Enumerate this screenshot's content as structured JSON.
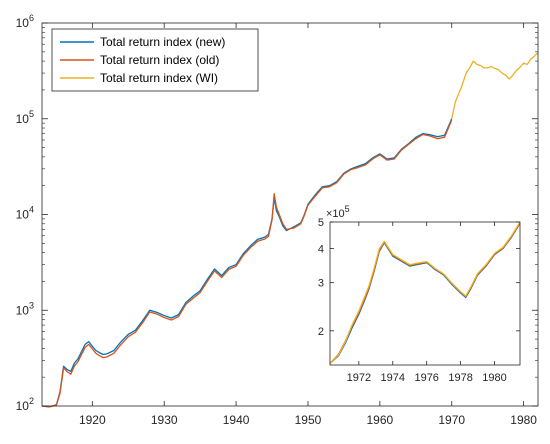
{
  "chart_data": [
    {
      "type": "line",
      "title": "",
      "xlabel": "",
      "ylabel": "",
      "y_scale": "log",
      "xlim": [
        1913,
        1982
      ],
      "ylim": [
        100,
        1000000
      ],
      "x_ticks": [
        1920,
        1930,
        1940,
        1950,
        1960,
        1970,
        1980
      ],
      "y_ticks": [
        {
          "value": 100,
          "base": "10",
          "exp": "2"
        },
        {
          "value": 1000,
          "base": "10",
          "exp": "3"
        },
        {
          "value": 10000,
          "base": "10",
          "exp": "4"
        },
        {
          "value": 100000,
          "base": "10",
          "exp": "5"
        },
        {
          "value": 1000000,
          "base": "10",
          "exp": "6"
        }
      ],
      "grid": false,
      "legend_position": "top-left",
      "series": [
        {
          "name": "Total return index (new)",
          "color": "#0072BD",
          "x": [
            1913.0,
            1914.0,
            1915.0,
            1915.5,
            1916.0,
            1916.5,
            1917.0,
            1917.5,
            1918.0,
            1919.0,
            1919.5,
            1920.0,
            1920.5,
            1921.0,
            1921.5,
            1922.0,
            1923.0,
            1924.0,
            1925.0,
            1926.0,
            1927.0,
            1928.0,
            1929.0,
            1930.0,
            1931.0,
            1932.0,
            1933.0,
            1934.0,
            1935.0,
            1936.0,
            1937.0,
            1938.0,
            1939.0,
            1940.0,
            1941.0,
            1942.0,
            1943.0,
            1944.0,
            1944.5,
            1945.0,
            1945.3,
            1945.6,
            1946.0,
            1946.5,
            1947.0,
            1948.0,
            1949.0,
            1949.5,
            1950.0,
            1951.0,
            1952.0,
            1953.0,
            1954.0,
            1955.0,
            1956.0,
            1957.0,
            1958.0,
            1959.0,
            1960.0,
            1961.0,
            1962.0,
            1963.0,
            1964.0,
            1965.0,
            1966.0,
            1967.0,
            1968.0,
            1969.0,
            1970.0
          ],
          "y": [
            100,
            98,
            103,
            140,
            260,
            240,
            230,
            280,
            310,
            440,
            470,
            420,
            380,
            360,
            345,
            350,
            380,
            470,
            560,
            620,
            780,
            1000,
            950,
            880,
            830,
            900,
            1200,
            1400,
            1600,
            2100,
            2700,
            2300,
            2800,
            3000,
            3900,
            4700,
            5500,
            5800,
            6200,
            9000,
            15000,
            11000,
            9500,
            7600,
            6800,
            7400,
            8200,
            10000,
            12800,
            16000,
            19500,
            20000,
            22000,
            27000,
            30000,
            32000,
            34000,
            39000,
            43000,
            38000,
            39000,
            48000,
            55000,
            64000,
            70000,
            68000,
            65000,
            67000,
            100000
          ]
        },
        {
          "name": "Total return index (old)",
          "color": "#D95319",
          "x": [
            1913.0,
            1914.0,
            1915.0,
            1915.5,
            1916.0,
            1916.5,
            1917.0,
            1917.5,
            1918.0,
            1919.0,
            1919.5,
            1920.0,
            1920.5,
            1921.0,
            1921.5,
            1922.0,
            1923.0,
            1924.0,
            1925.0,
            1926.0,
            1927.0,
            1928.0,
            1929.0,
            1930.0,
            1931.0,
            1932.0,
            1933.0,
            1934.0,
            1935.0,
            1936.0,
            1937.0,
            1938.0,
            1939.0,
            1940.0,
            1941.0,
            1942.0,
            1943.0,
            1944.0,
            1944.5,
            1945.0,
            1945.3,
            1945.6,
            1946.0,
            1946.5,
            1947.0,
            1948.0,
            1949.0,
            1949.5,
            1950.0,
            1951.0,
            1952.0,
            1953.0,
            1954.0,
            1955.0,
            1956.0,
            1957.0,
            1958.0,
            1959.0,
            1960.0,
            1961.0,
            1962.0,
            1963.0,
            1964.0,
            1965.0,
            1966.0,
            1967.0,
            1968.0,
            1969.0,
            1970.0
          ],
          "y": [
            100,
            98,
            102,
            135,
            250,
            228,
            215,
            260,
            290,
            410,
            440,
            395,
            355,
            335,
            320,
            325,
            355,
            440,
            530,
            590,
            740,
            960,
            910,
            840,
            790,
            860,
            1150,
            1330,
            1530,
            2000,
            2580,
            2200,
            2680,
            2880,
            3750,
            4500,
            5250,
            5550,
            5900,
            8800,
            16500,
            12000,
            10000,
            8000,
            7000,
            7200,
            8000,
            9800,
            12500,
            15500,
            19000,
            19500,
            21500,
            26500,
            29500,
            31000,
            33000,
            38000,
            42000,
            37000,
            38000,
            47000,
            54000,
            62000,
            68500,
            66000,
            62000,
            64000,
            97000
          ]
        },
        {
          "name": "Total return index (WI)",
          "color": "#EDB120",
          "x": [
            1970.0,
            1970.5,
            1971.0,
            1971.5,
            1972.0,
            1972.5,
            1973.0,
            1973.5,
            1974.0,
            1974.5,
            1975.0,
            1975.5,
            1976.0,
            1976.5,
            1977.0,
            1977.5,
            1978.0,
            1978.5,
            1979.0,
            1979.5,
            1980.0,
            1980.5,
            1981.0,
            1981.5,
            1982.0
          ],
          "y": [
            100000,
            150000,
            185000,
            230000,
            300000,
            340000,
            400000,
            370000,
            360000,
            340000,
            340000,
            350000,
            335000,
            325000,
            300000,
            285000,
            260000,
            285000,
            320000,
            345000,
            380000,
            370000,
            420000,
            450000,
            490000
          ]
        }
      ]
    },
    {
      "type": "line",
      "title": "",
      "xlabel": "",
      "ylabel": "",
      "y_scale": "log",
      "xlim": [
        1970.3,
        1981.5
      ],
      "ylim": [
        150000,
        500000
      ],
      "x_ticks": [
        1972,
        1974,
        1976,
        1978,
        1980
      ],
      "y_ticks": [
        {
          "value": 200000,
          "label": "2"
        },
        {
          "value": 300000,
          "label": "3"
        },
        {
          "value": 400000,
          "label": "4"
        },
        {
          "value": 500000,
          "label": "5"
        }
      ],
      "y_multiplier": {
        "base": "×10",
        "exp": "5"
      },
      "grid": false,
      "series": [
        {
          "name": "Total return index (new)",
          "color": "#0072BD",
          "x": [
            1970.3,
            1970.8,
            1971.2,
            1971.6,
            1972.0,
            1972.3,
            1972.6,
            1972.9,
            1973.2,
            1973.5,
            1974.0,
            1974.5,
            1975.0,
            1975.5,
            1976.0,
            1976.5,
            1977.0,
            1977.5,
            1978.0,
            1978.3,
            1978.6,
            1979.0,
            1979.5,
            1980.0,
            1980.5,
            1981.0,
            1981.5
          ],
          "y": [
            152000,
            162000,
            180000,
            205000,
            230000,
            255000,
            285000,
            330000,
            390000,
            420000,
            375000,
            360000,
            345000,
            350000,
            355000,
            335000,
            320000,
            295000,
            275000,
            265000,
            285000,
            320000,
            345000,
            380000,
            400000,
            440000,
            495000
          ]
        },
        {
          "name": "Total return index (old)",
          "color": "#D95319",
          "x": [
            1970.3,
            1970.8,
            1971.2,
            1971.6,
            1972.0,
            1972.3,
            1972.6,
            1972.9,
            1973.2,
            1973.5,
            1974.0,
            1974.5,
            1975.0,
            1975.5,
            1976.0,
            1976.5,
            1977.0,
            1977.5,
            1978.0,
            1978.3,
            1978.6,
            1979.0,
            1979.5,
            1980.0,
            1980.5,
            1981.0,
            1981.5
          ],
          "y": [
            152000,
            164000,
            183000,
            208000,
            233000,
            258000,
            288000,
            333000,
            393000,
            423000,
            378000,
            362000,
            347000,
            352000,
            357000,
            337000,
            322000,
            297000,
            277000,
            267000,
            287000,
            322000,
            347000,
            382000,
            402000,
            442000,
            497000
          ]
        },
        {
          "name": "Total return index (WI)",
          "color": "#EDB120",
          "x": [
            1970.3,
            1970.8,
            1971.2,
            1971.6,
            1972.0,
            1972.3,
            1972.6,
            1972.9,
            1973.2,
            1973.5,
            1974.0,
            1974.5,
            1975.0,
            1975.5,
            1976.0,
            1976.5,
            1977.0,
            1977.5,
            1978.0,
            1978.3,
            1978.6,
            1979.0,
            1979.5,
            1980.0,
            1980.5,
            1981.0,
            1981.5
          ],
          "y": [
            152000,
            163000,
            182000,
            210000,
            236000,
            262000,
            292000,
            338000,
            398000,
            425000,
            380000,
            364000,
            349000,
            354000,
            358000,
            338000,
            323000,
            298000,
            278000,
            268000,
            289000,
            324000,
            349000,
            384000,
            404000,
            445000,
            500000
          ]
        }
      ]
    }
  ]
}
